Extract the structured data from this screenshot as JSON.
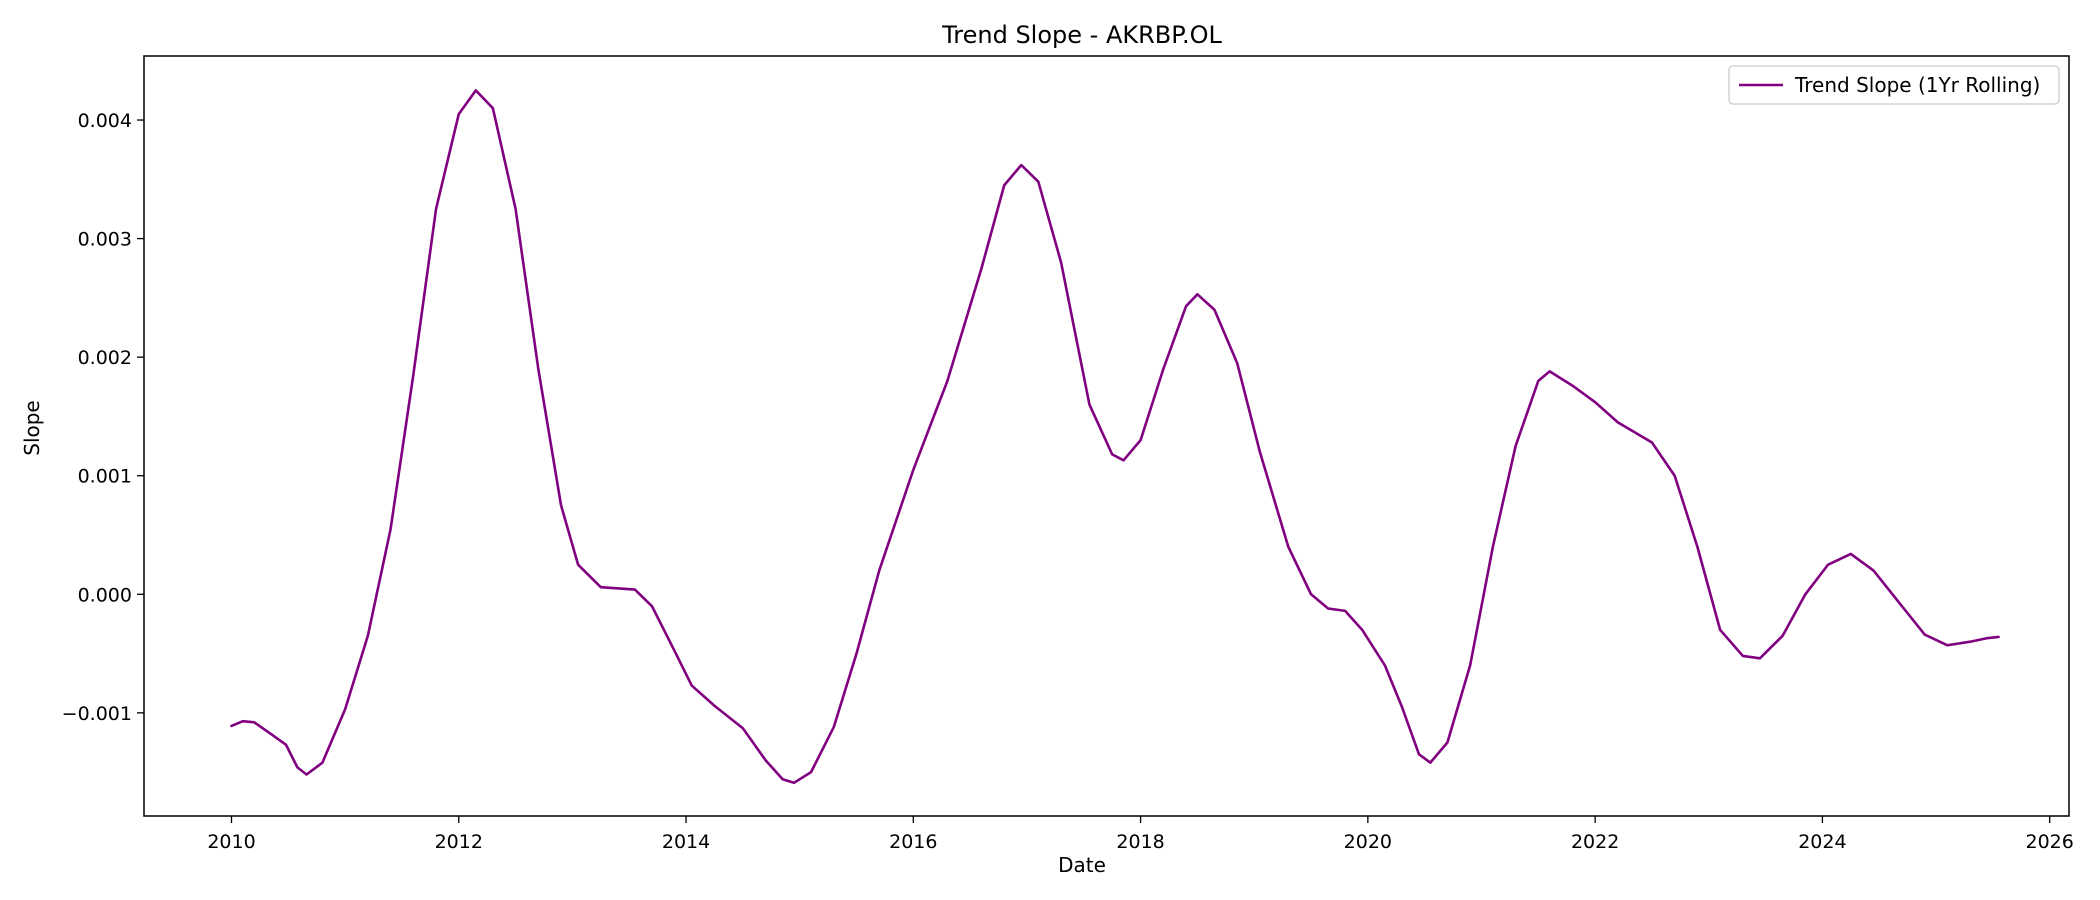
{
  "chart_data": {
    "type": "line",
    "title": "Trend Slope - AKRBP.OL",
    "xlabel": "Date",
    "ylabel": "Slope",
    "xlim": [
      2009.23,
      2026.17
    ],
    "ylim": [
      -0.00187,
      0.00454
    ],
    "x_ticks": [
      2010,
      2012,
      2014,
      2016,
      2018,
      2020,
      2022,
      2024,
      2026
    ],
    "x_tick_labels": [
      "2010",
      "2012",
      "2014",
      "2016",
      "2018",
      "2020",
      "2022",
      "2024",
      "2026"
    ],
    "y_ticks": [
      -0.001,
      0.0,
      0.001,
      0.002,
      0.003,
      0.004
    ],
    "y_tick_labels": [
      "−0.001",
      "0.000",
      "0.001",
      "0.002",
      "0.003",
      "0.004"
    ],
    "grid": false,
    "legend_position": "top-right",
    "series": [
      {
        "name": "Trend Slope (1Yr Rolling)",
        "color": "#800080",
        "points": [
          [
            2010.0,
            -0.00111
          ],
          [
            2010.1,
            -0.00107
          ],
          [
            2010.2,
            -0.00108
          ],
          [
            2010.35,
            -0.00118
          ],
          [
            2010.48,
            -0.00127
          ],
          [
            2010.58,
            -0.00146
          ],
          [
            2010.66,
            -0.00152
          ],
          [
            2010.8,
            -0.00142
          ],
          [
            2011.0,
            -0.00097
          ],
          [
            2011.2,
            -0.00035
          ],
          [
            2011.4,
            0.00055
          ],
          [
            2011.6,
            0.00185
          ],
          [
            2011.8,
            0.00325
          ],
          [
            2012.0,
            0.00405
          ],
          [
            2012.15,
            0.00425
          ],
          [
            2012.3,
            0.0041
          ],
          [
            2012.5,
            0.00325
          ],
          [
            2012.7,
            0.0019
          ],
          [
            2012.9,
            0.00075
          ],
          [
            2013.05,
            0.00025
          ],
          [
            2013.25,
            6e-05
          ],
          [
            2013.55,
            4e-05
          ],
          [
            2013.7,
            -0.0001
          ],
          [
            2013.9,
            -0.00048
          ],
          [
            2014.05,
            -0.00077
          ],
          [
            2014.25,
            -0.00094
          ],
          [
            2014.5,
            -0.00113
          ],
          [
            2014.7,
            -0.0014
          ],
          [
            2014.85,
            -0.00156
          ],
          [
            2014.95,
            -0.00159
          ],
          [
            2015.1,
            -0.0015
          ],
          [
            2015.3,
            -0.00112
          ],
          [
            2015.5,
            -0.0005
          ],
          [
            2015.7,
            0.0002
          ],
          [
            2016.0,
            0.00105
          ],
          [
            2016.3,
            0.0018
          ],
          [
            2016.6,
            0.00275
          ],
          [
            2016.8,
            0.00345
          ],
          [
            2016.95,
            0.00362
          ],
          [
            2017.1,
            0.00348
          ],
          [
            2017.3,
            0.0028
          ],
          [
            2017.55,
            0.0016
          ],
          [
            2017.75,
            0.00118
          ],
          [
            2017.85,
            0.00113
          ],
          [
            2018.0,
            0.0013
          ],
          [
            2018.2,
            0.0019
          ],
          [
            2018.4,
            0.00243
          ],
          [
            2018.5,
            0.00253
          ],
          [
            2018.65,
            0.0024
          ],
          [
            2018.85,
            0.00195
          ],
          [
            2019.05,
            0.0012
          ],
          [
            2019.3,
            0.0004
          ],
          [
            2019.5,
            0.0
          ],
          [
            2019.65,
            -0.00012
          ],
          [
            2019.8,
            -0.00014
          ],
          [
            2019.95,
            -0.0003
          ],
          [
            2020.15,
            -0.0006
          ],
          [
            2020.3,
            -0.00095
          ],
          [
            2020.45,
            -0.00135
          ],
          [
            2020.55,
            -0.00142
          ],
          [
            2020.7,
            -0.00125
          ],
          [
            2020.9,
            -0.0006
          ],
          [
            2021.1,
            0.0004
          ],
          [
            2021.3,
            0.00125
          ],
          [
            2021.5,
            0.0018
          ],
          [
            2021.6,
            0.00188
          ],
          [
            2021.8,
            0.00176
          ],
          [
            2022.0,
            0.00162
          ],
          [
            2022.2,
            0.00145
          ],
          [
            2022.5,
            0.00128
          ],
          [
            2022.7,
            0.001
          ],
          [
            2022.9,
            0.0004
          ],
          [
            2023.1,
            -0.0003
          ],
          [
            2023.3,
            -0.00052
          ],
          [
            2023.45,
            -0.00054
          ],
          [
            2023.65,
            -0.00035
          ],
          [
            2023.85,
            0.0
          ],
          [
            2024.05,
            0.00025
          ],
          [
            2024.25,
            0.00034
          ],
          [
            2024.45,
            0.0002
          ],
          [
            2024.7,
            -0.0001
          ],
          [
            2024.9,
            -0.00034
          ],
          [
            2025.1,
            -0.00043
          ],
          [
            2025.3,
            -0.0004
          ],
          [
            2025.45,
            -0.00037
          ],
          [
            2025.55,
            -0.00036
          ]
        ]
      }
    ]
  }
}
